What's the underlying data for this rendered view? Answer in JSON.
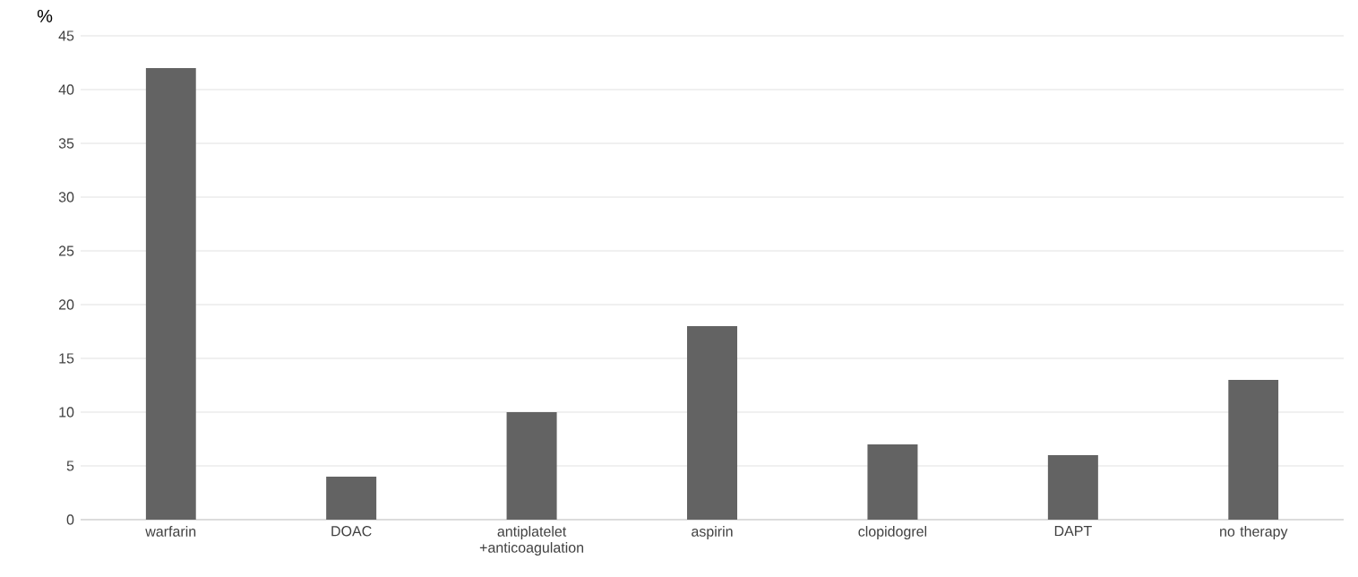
{
  "chart_data": {
    "type": "bar",
    "ylabel": "%",
    "categories": [
      "warfarin",
      "DOAC",
      "antiplatelet +anticoagulation",
      "aspirin",
      "clopidogrel",
      "DAPT",
      "no therapy"
    ],
    "values": [
      42,
      4,
      10,
      18,
      7,
      6,
      13
    ],
    "color": "#636363",
    "ylim": [
      0,
      45
    ],
    "yticks": [
      0,
      5,
      10,
      15,
      20,
      25,
      30,
      35,
      40,
      45
    ],
    "grid": "y"
  }
}
